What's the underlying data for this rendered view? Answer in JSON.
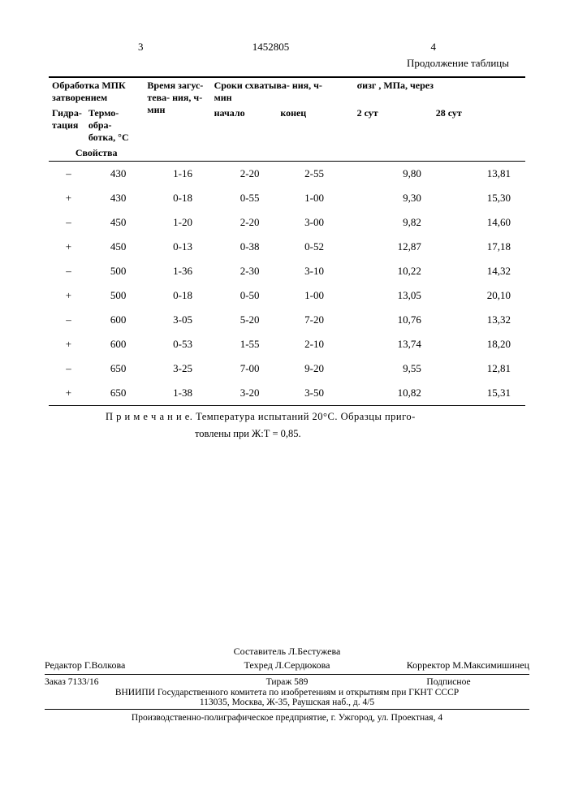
{
  "header": {
    "left_num": "3",
    "doc_num": "1452805",
    "right_num": "4",
    "continuation": "Продолжение таблицы"
  },
  "table_headers": {
    "group1": "Обработка МПК затворением",
    "group2": "Свойства",
    "h1": "Гидра-\nтация",
    "h2": "Термо-\nобра-\nботка,\n°С",
    "h3": "Время\nзагус-\nтева-\nния,\nч-мин",
    "h4": "Сроки схватыва-\nния,  ч-мин",
    "h4a": "начало",
    "h4b": "конец",
    "h5": "σизг , МПа, через",
    "h5a": "2 сут",
    "h5b": "28 сут"
  },
  "rows": [
    {
      "c1": "–",
      "c2": "430",
      "c3": "1-16",
      "c4": "2-20",
      "c5": "2-55",
      "c6": "9,80",
      "c7": "13,81"
    },
    {
      "c1": "+",
      "c2": "430",
      "c3": "0-18",
      "c4": "0-55",
      "c5": "1-00",
      "c6": "9,30",
      "c7": "15,30"
    },
    {
      "c1": "–",
      "c2": "450",
      "c3": "1-20",
      "c4": "2-20",
      "c5": "3-00",
      "c6": "9,82",
      "c7": "14,60"
    },
    {
      "c1": "+",
      "c2": "450",
      "c3": "0-13",
      "c4": "0-38",
      "c5": "0-52",
      "c6": "12,87",
      "c7": "17,18"
    },
    {
      "c1": "–",
      "c2": "500",
      "c3": "1-36",
      "c4": "2-30",
      "c5": "3-10",
      "c6": "10,22",
      "c7": "14,32"
    },
    {
      "c1": "+",
      "c2": "500",
      "c3": "0-18",
      "c4": "0-50",
      "c5": "1-00",
      "c6": "13,05",
      "c7": "20,10"
    },
    {
      "c1": "–",
      "c2": "600",
      "c3": "3-05",
      "c4": "5-20",
      "c5": "7-20",
      "c6": "10,76",
      "c7": "13,32"
    },
    {
      "c1": "+",
      "c2": "600",
      "c3": "0-53",
      "c4": "1-55",
      "c5": "2-10",
      "c6": "13,74",
      "c7": "18,20"
    },
    {
      "c1": "–",
      "c2": "650",
      "c3": "3-25",
      "c4": "7-00",
      "c5": "9-20",
      "c6": "9,55",
      "c7": "12,81"
    },
    {
      "c1": "+",
      "c2": "650",
      "c3": "1-38",
      "c4": "3-20",
      "c5": "3-50",
      "c6": "10,82",
      "c7": "15,31"
    }
  ],
  "note": {
    "label": "П р и м е ч а н и е.",
    "line1": "Температура испытаний 20°С. Образцы приго-",
    "line2": "товлены при Ж:Т = 0,85."
  },
  "footer": {
    "compiler": "Составитель Л.Бестужева",
    "editor": "Редактор Г.Волкова",
    "tekhred": "Техред Л.Сердюкова",
    "corrector": "Корректор М.Максимишинец",
    "order": "Заказ 7133/16",
    "tirazh": "Тираж 589",
    "podpisnoe": "Подписное",
    "org1": "ВНИИПИ Государственного комитета по изобретениям и открытиям при ГКНТ СССР",
    "addr1": "113035, Москва, Ж-35, Раушская наб., д. 4/5",
    "org2": "Производственно-полиграфическое предприятие, г. Ужгород, ул. Проектная, 4"
  }
}
